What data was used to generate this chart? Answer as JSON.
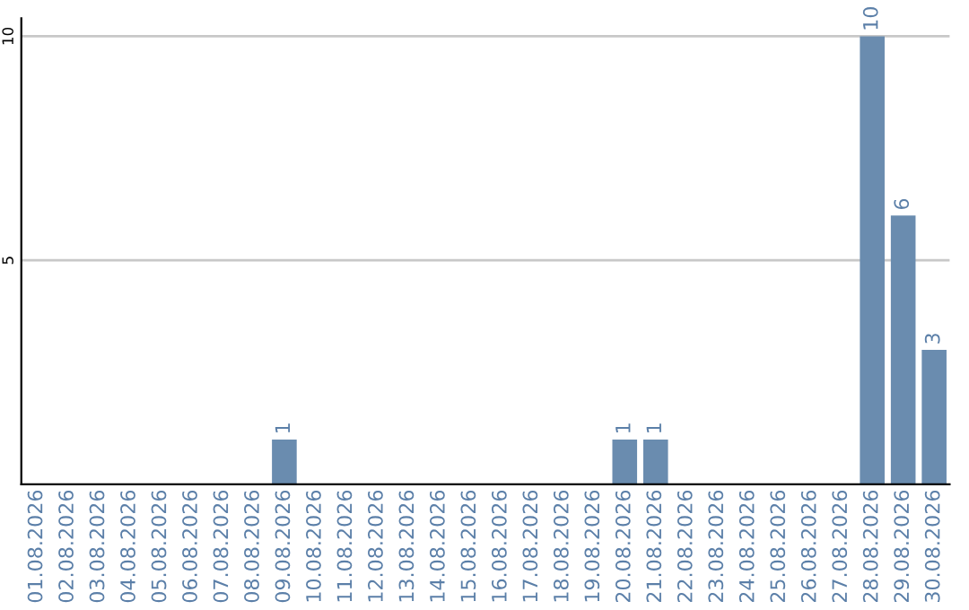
{
  "chart_data": {
    "type": "bar",
    "categories": [
      "01.08.2026",
      "02.08.2026",
      "03.08.2026",
      "04.08.2026",
      "05.08.2026",
      "06.08.2026",
      "07.08.2026",
      "08.08.2026",
      "09.08.2026",
      "10.08.2026",
      "11.08.2026",
      "12.08.2026",
      "13.08.2026",
      "14.08.2026",
      "15.08.2026",
      "16.08.2026",
      "17.08.2026",
      "18.08.2026",
      "19.08.2026",
      "20.08.2026",
      "21.08.2026",
      "22.08.2026",
      "23.08.2026",
      "24.08.2026",
      "25.08.2026",
      "26.08.2026",
      "27.08.2026",
      "28.08.2026",
      "29.08.2026",
      "30.08.2026"
    ],
    "values": [
      0,
      0,
      0,
      0,
      0,
      0,
      0,
      0,
      1,
      0,
      0,
      0,
      0,
      0,
      0,
      0,
      0,
      0,
      0,
      1,
      1,
      0,
      0,
      0,
      0,
      0,
      0,
      10,
      6,
      3
    ],
    "value_labels": [
      null,
      null,
      null,
      null,
      null,
      null,
      null,
      null,
      "1",
      null,
      null,
      null,
      null,
      null,
      null,
      null,
      null,
      null,
      null,
      "1",
      "1",
      null,
      null,
      null,
      null,
      null,
      null,
      "10",
      "6",
      "3"
    ],
    "color": "#6a8caf",
    "ylim": [
      0,
      10.4
    ],
    "yticks": [
      5,
      10
    ],
    "grid": "y",
    "legend": false
  }
}
